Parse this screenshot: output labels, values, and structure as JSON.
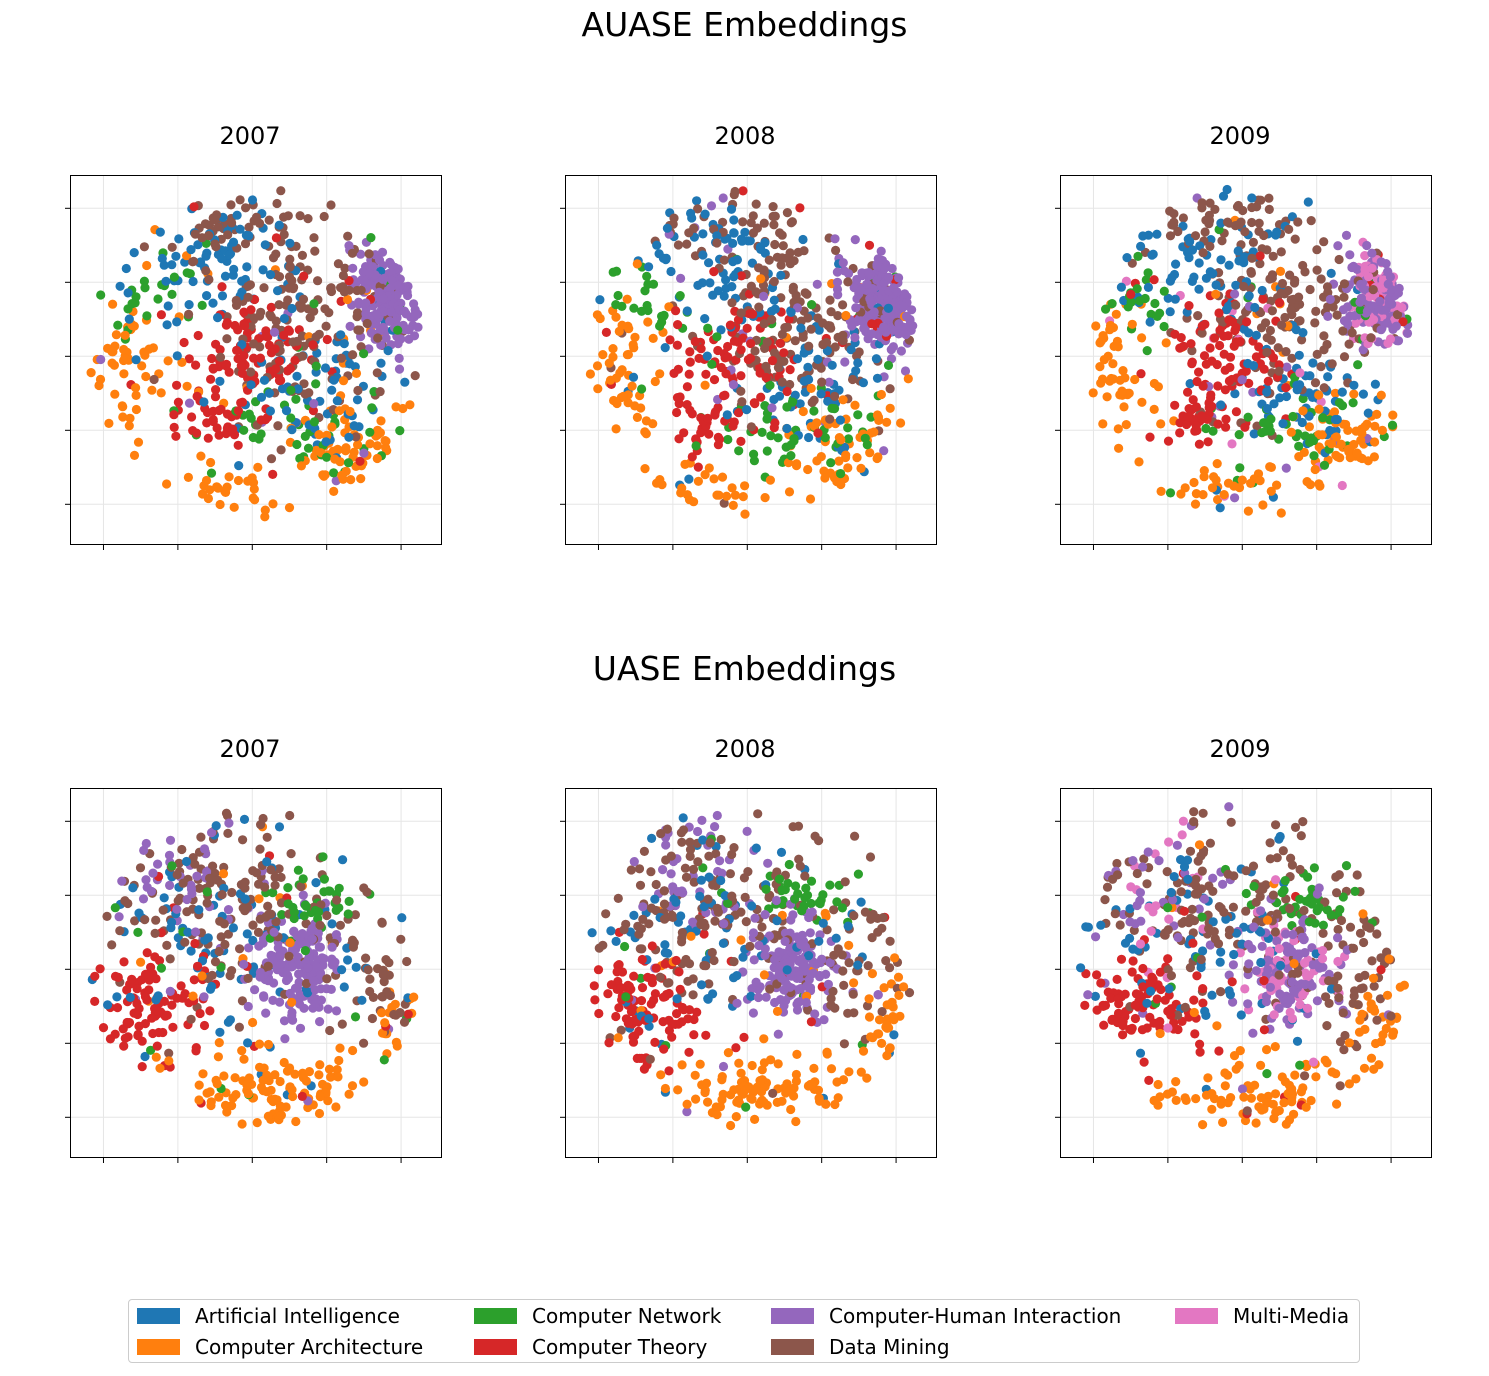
{
  "figure": {
    "suptitles": [
      "AUASE Embeddings",
      "UASE Embeddings"
    ]
  },
  "chart_data": [
    {
      "type": "scatter",
      "group": "AUASE Embeddings",
      "title": "2007",
      "seed": 11,
      "hasMultiMedia": false,
      "grid": true,
      "tick_labels": "hidden"
    },
    {
      "type": "scatter",
      "group": "AUASE Embeddings",
      "title": "2008",
      "seed": 23,
      "hasMultiMedia": false,
      "grid": true,
      "tick_labels": "hidden"
    },
    {
      "type": "scatter",
      "group": "AUASE Embeddings",
      "title": "2009",
      "seed": 37,
      "hasMultiMedia": true,
      "grid": true,
      "tick_labels": "hidden"
    },
    {
      "type": "scatter",
      "group": "UASE Embeddings",
      "title": "2007",
      "seed": 41,
      "hasMultiMedia": false,
      "grid": true,
      "tick_labels": "hidden"
    },
    {
      "type": "scatter",
      "group": "UASE Embeddings",
      "title": "2008",
      "seed": 53,
      "hasMultiMedia": false,
      "grid": true,
      "tick_labels": "hidden"
    },
    {
      "type": "scatter",
      "group": "UASE Embeddings",
      "title": "2009",
      "seed": 67,
      "hasMultiMedia": true,
      "grid": true,
      "tick_labels": "hidden"
    }
  ],
  "legend": {
    "placement": "bottom-center",
    "items": [
      {
        "label": "Artificial Intelligence",
        "color": "#1f77b4"
      },
      {
        "label": "Computer Architecture",
        "color": "#ff7f0e"
      },
      {
        "label": "Computer Network",
        "color": "#2ca02c"
      },
      {
        "label": "Computer Theory",
        "color": "#d62728"
      },
      {
        "label": "Computer-Human Interaction",
        "color": "#9467bd"
      },
      {
        "label": "Data Mining",
        "color": "#8c564b"
      },
      {
        "label": "Multi-Media",
        "color": "#e377c2"
      }
    ]
  }
}
